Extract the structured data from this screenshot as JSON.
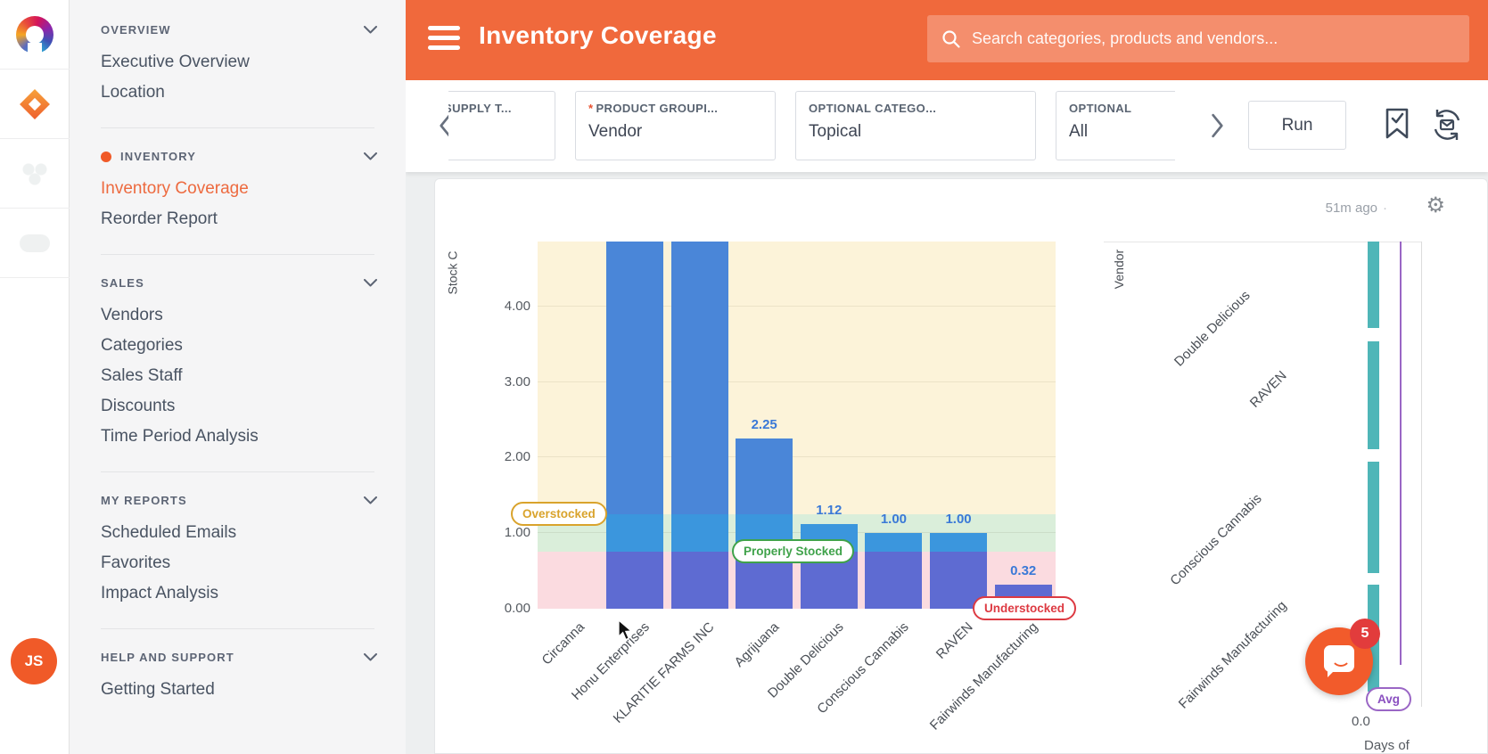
{
  "sidebar": {
    "sections": [
      {
        "header": "OVERVIEW",
        "dot": false,
        "items": [
          {
            "label": "Executive Overview",
            "active": false
          },
          {
            "label": "Location",
            "active": false
          }
        ]
      },
      {
        "header": "INVENTORY",
        "dot": true,
        "items": [
          {
            "label": "Inventory Coverage",
            "active": true
          },
          {
            "label": "Reorder Report",
            "active": false
          }
        ]
      },
      {
        "header": "SALES",
        "dot": false,
        "items": [
          {
            "label": "Vendors",
            "active": false
          },
          {
            "label": "Categories",
            "active": false
          },
          {
            "label": "Sales Staff",
            "active": false
          },
          {
            "label": "Discounts",
            "active": false
          },
          {
            "label": "Time Period Analysis",
            "active": false
          }
        ]
      },
      {
        "header": "MY REPORTS",
        "dot": false,
        "items": [
          {
            "label": "Scheduled Emails",
            "active": false
          },
          {
            "label": "Favorites",
            "active": false
          },
          {
            "label": "Impact Analysis",
            "active": false
          }
        ]
      },
      {
        "header": "HELP AND SUPPORT",
        "dot": false,
        "items": [
          {
            "label": "Getting Started",
            "active": false
          }
        ]
      }
    ],
    "avatar_initials": "JS",
    "active_color": "#ed6a3f"
  },
  "header": {
    "title": "Inventory Coverage",
    "search_placeholder": "Search categories, products and vendors...",
    "bar_color": "#f0693c"
  },
  "filters": {
    "cards": [
      {
        "label": "SUPPLY T...",
        "value": "",
        "required": false
      },
      {
        "label": "PRODUCT GROUPI...",
        "value": "Vendor",
        "required": true
      },
      {
        "label": "OPTIONAL CATEGO...",
        "value": "Topical",
        "required": false
      },
      {
        "label": "OPTIONAL",
        "value": "All",
        "required": false
      }
    ],
    "run_label": "Run",
    "icons": [
      "bookmark-check-icon",
      "schedule-email-icon"
    ]
  },
  "panel": {
    "updated": "51m ago",
    "separator": "·"
  },
  "chart_data": [
    {
      "type": "bar",
      "ylabel_visible": "Stock C",
      "ylim": [
        0,
        4.86
      ],
      "yticks": [
        {
          "value": 0,
          "label": "0.00"
        },
        {
          "value": 1,
          "label": "1.00"
        },
        {
          "value": 2,
          "label": "2.00"
        },
        {
          "value": 3,
          "label": "3.00"
        },
        {
          "value": 4,
          "label": "4.00"
        }
      ],
      "categories": [
        "Circanna",
        "Honu Enterprises",
        "KLARITIE FARMS INC",
        "Agrijuana",
        "Double Delicious",
        "Conscious Cannabis",
        "RAVEN",
        "Fairwinds Manufacturing"
      ],
      "values": [
        0,
        4.86,
        4.86,
        2.25,
        1.12,
        1.0,
        1.0,
        0.32
      ],
      "bar_labels": [
        "",
        "",
        "",
        "2.25",
        "1.12",
        "1.00",
        "1.00",
        "0.32"
      ],
      "clipped_bars": [
        "Honu Enterprises",
        "KLARITIE FARMS INC"
      ],
      "bar_color": "#4a86d8",
      "value_label_color": "#3a79d7",
      "zones": [
        {
          "label": "Understocked",
          "from": 0,
          "to": 0.75,
          "band_color": "#fbdbe0",
          "accent": "#dd3a42",
          "bar_tint": "#5e6bd2"
        },
        {
          "label": "Properly Stocked",
          "from": 0.75,
          "to": 1.25,
          "band_color": "#daeeda",
          "accent": "#3fa24a",
          "bar_tint": "#3b96dd"
        },
        {
          "label": "Overstocked",
          "from": 1.25,
          "to": 4.86,
          "band_color": "#fcf3d9",
          "accent": "#d9a32c",
          "bar_tint": "#4a86d8"
        }
      ]
    },
    {
      "type": "horizontal-bar",
      "ylabel": "Vendor",
      "xlabel_visible": "Days of",
      "xticks": [
        "0.0"
      ],
      "categories": [
        "Double Delicious",
        "RAVEN",
        "Conscious Cannabis",
        "Fairwinds Manufacturing"
      ],
      "bar_color": "#4fb6b8",
      "avg_label": "Avg",
      "avg_line_color": "#9a66c5",
      "note": "bars and x-axis clipped at right edge of visible area"
    }
  ],
  "chat": {
    "unread": "5"
  }
}
